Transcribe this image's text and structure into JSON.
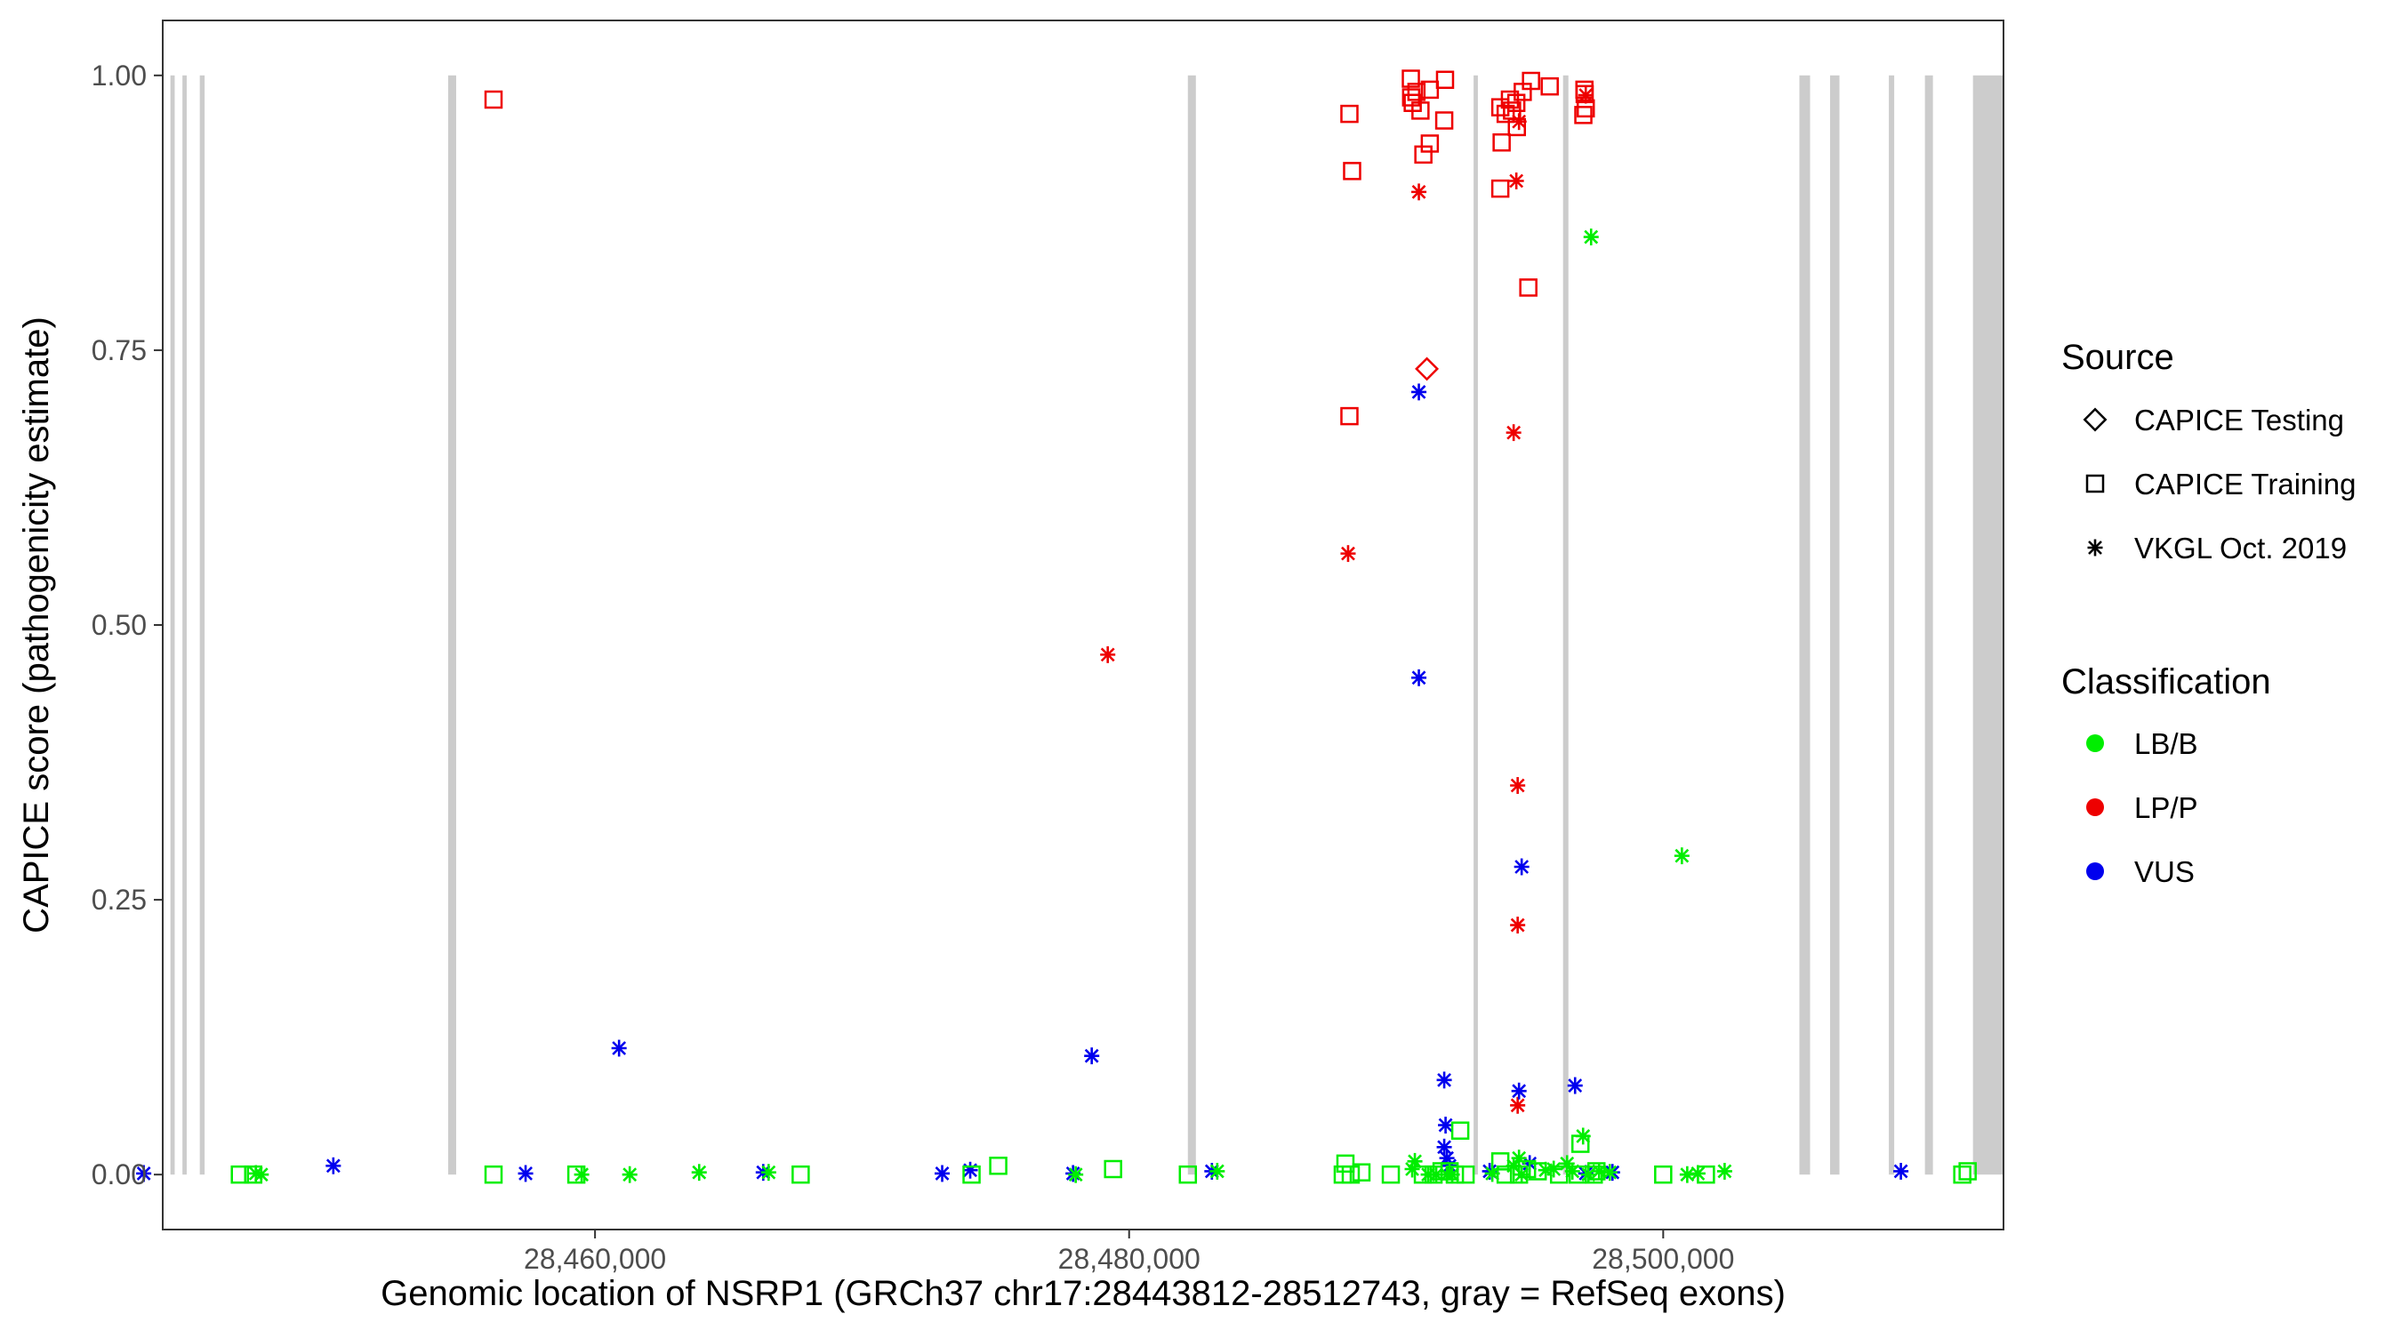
{
  "chart_data": {
    "type": "scatter",
    "xlabel": "Genomic location of NSRP1 (GRCh37 chr17:28443812-28512743, gray = RefSeq exons)",
    "ylabel": "CAPICE score (pathogenicity estimate)",
    "xlim": [
      28443812,
      28512743
    ],
    "ylim": [
      -0.05,
      1.05
    ],
    "x_ticks": [
      28460000,
      28480000,
      28500000
    ],
    "x_tick_labels": [
      "28,460,000",
      "28,480,000",
      "28,500,000"
    ],
    "y_ticks": [
      0,
      0.25,
      0.5,
      0.75,
      1.0
    ],
    "y_tick_labels": [
      "0.00",
      "0.25",
      "0.50",
      "0.75",
      "1.00"
    ],
    "grid": false,
    "legend": {
      "position": "right",
      "source_title": "Source",
      "source_entries": [
        {
          "label": "CAPICE Testing",
          "shape": "diamond"
        },
        {
          "label": "CAPICE Training",
          "shape": "square"
        },
        {
          "label": "VKGL Oct. 2019",
          "shape": "asterisk"
        }
      ],
      "class_title": "Classification",
      "class_entries": [
        {
          "label": "LB/B",
          "color": "#00ee00"
        },
        {
          "label": "LP/P",
          "color": "#ee0000"
        },
        {
          "label": "VUS",
          "color": "#0000ee"
        }
      ]
    },
    "exon_color": "#cccccc",
    "exons": [
      [
        28444100,
        28444260
      ],
      [
        28444550,
        28444710
      ],
      [
        28445200,
        28445380
      ],
      [
        28454500,
        28454800
      ],
      [
        28482200,
        28482500
      ],
      [
        28492900,
        28493060
      ],
      [
        28496250,
        28496450
      ],
      [
        28505100,
        28505500
      ],
      [
        28506250,
        28506600
      ],
      [
        28508450,
        28508650
      ],
      [
        28509800,
        28510100
      ],
      [
        28511600,
        28512743
      ]
    ],
    "series": [
      {
        "class": "LP/P",
        "source": "CAPICE Training",
        "shape": "square",
        "color": "#ee0000",
        "points": [
          [
            28456200,
            0.978
          ],
          [
            28488250,
            0.965
          ],
          [
            28488350,
            0.913
          ],
          [
            28488250,
            0.69
          ],
          [
            28490550,
            0.997
          ],
          [
            28490560,
            0.98
          ],
          [
            28490620,
            0.975
          ],
          [
            28490760,
            0.985
          ],
          [
            28490910,
            0.968
          ],
          [
            28491260,
            0.987
          ],
          [
            28491020,
            0.928
          ],
          [
            28491260,
            0.938
          ],
          [
            28491830,
            0.996
          ],
          [
            28491800,
            0.959
          ],
          [
            28493900,
            0.971
          ],
          [
            28494100,
            0.965
          ],
          [
            28494260,
            0.978
          ],
          [
            28494340,
            0.968
          ],
          [
            28494500,
            0.975
          ],
          [
            28494740,
            0.985
          ],
          [
            28494520,
            0.953
          ],
          [
            28493950,
            0.939
          ],
          [
            28493900,
            0.897
          ],
          [
            28495050,
            0.995
          ],
          [
            28495750,
            0.99
          ],
          [
            28497050,
            0.987
          ],
          [
            28497060,
            0.983
          ],
          [
            28497010,
            0.964
          ],
          [
            28497100,
            0.97
          ],
          [
            28494950,
            0.807
          ]
        ]
      },
      {
        "class": "LP/P",
        "source": "CAPICE Testing",
        "shape": "diamond",
        "color": "#ee0000",
        "points": [
          [
            28491150,
            0.733
          ]
        ]
      },
      {
        "class": "LP/P",
        "source": "VKGL Oct. 2019",
        "shape": "asterisk",
        "color": "#ee0000",
        "points": [
          [
            28479200,
            0.473
          ],
          [
            28488200,
            0.565
          ],
          [
            28490850,
            0.894
          ],
          [
            28494500,
            0.904
          ],
          [
            28494400,
            0.675
          ],
          [
            28494550,
            0.354
          ],
          [
            28494550,
            0.227
          ],
          [
            28494550,
            0.063
          ],
          [
            28494600,
            0.958
          ],
          [
            28497100,
            0.982
          ]
        ]
      },
      {
        "class": "VUS",
        "source": "VKGL Oct. 2019",
        "shape": "asterisk",
        "color": "#0000ee",
        "points": [
          [
            28443100,
            0.001
          ],
          [
            28450200,
            0.008
          ],
          [
            28457400,
            0.001
          ],
          [
            28460900,
            0.115
          ],
          [
            28466300,
            0.002
          ],
          [
            28473000,
            0.001
          ],
          [
            28474050,
            0.004
          ],
          [
            28477900,
            0.001
          ],
          [
            28478600,
            0.108
          ],
          [
            28483100,
            0.003
          ],
          [
            28490850,
            0.712
          ],
          [
            28490850,
            0.452
          ],
          [
            28491800,
            0.086
          ],
          [
            28491850,
            0.045
          ],
          [
            28491800,
            0.025
          ],
          [
            28491900,
            0.015
          ],
          [
            28492000,
            0.008
          ],
          [
            28493500,
            0.003
          ],
          [
            28494600,
            0.076
          ],
          [
            28494700,
            0.28
          ],
          [
            28495000,
            0.01
          ],
          [
            28496700,
            0.081
          ],
          [
            28497100,
            0.001
          ],
          [
            28498100,
            0.002
          ],
          [
            28508900,
            0.003
          ]
        ]
      },
      {
        "class": "LB/B",
        "source": "CAPICE Training",
        "shape": "square",
        "color": "#00ee00",
        "points": [
          [
            28446700,
            0.0
          ],
          [
            28447200,
            0.0
          ],
          [
            28456200,
            0.0
          ],
          [
            28459300,
            0.0
          ],
          [
            28467700,
            0.0
          ],
          [
            28474100,
            0.0
          ],
          [
            28475100,
            0.008
          ],
          [
            28479400,
            0.005
          ],
          [
            28482200,
            0.0
          ],
          [
            28488000,
            0.0
          ],
          [
            28488100,
            0.01
          ],
          [
            28488300,
            0.0
          ],
          [
            28488700,
            0.002
          ],
          [
            28489800,
            0.0
          ],
          [
            28491000,
            0.0
          ],
          [
            28491400,
            0.0
          ],
          [
            28491700,
            0.003
          ],
          [
            28492000,
            0.003
          ],
          [
            28492200,
            0.0
          ],
          [
            28492400,
            0.04
          ],
          [
            28492600,
            0.0
          ],
          [
            28493900,
            0.012
          ],
          [
            28494100,
            0.0
          ],
          [
            28494600,
            0.0
          ],
          [
            28494900,
            0.005
          ],
          [
            28495300,
            0.003
          ],
          [
            28496100,
            0.0
          ],
          [
            28496800,
            0.0
          ],
          [
            28496900,
            0.028
          ],
          [
            28497400,
            0.0
          ],
          [
            28497500,
            0.003
          ],
          [
            28500000,
            0.0
          ],
          [
            28501600,
            0.0
          ],
          [
            28511200,
            0.0
          ],
          [
            28511400,
            0.003
          ]
        ]
      },
      {
        "class": "LB/B",
        "source": "VKGL Oct. 2019",
        "shape": "asterisk",
        "color": "#00ee00",
        "points": [
          [
            28447300,
            0.001
          ],
          [
            28447500,
            0.0
          ],
          [
            28459500,
            0.0
          ],
          [
            28461300,
            0.0
          ],
          [
            28463900,
            0.002
          ],
          [
            28466500,
            0.002
          ],
          [
            28478000,
            0.0
          ],
          [
            28483300,
            0.003
          ],
          [
            28490600,
            0.005
          ],
          [
            28490700,
            0.012
          ],
          [
            28491200,
            0.0
          ],
          [
            28491500,
            0.0
          ],
          [
            28491900,
            0.0
          ],
          [
            28492100,
            0.0
          ],
          [
            28493600,
            0.001
          ],
          [
            28494400,
            0.008
          ],
          [
            28494600,
            0.015
          ],
          [
            28494700,
            0.0
          ],
          [
            28495600,
            0.004
          ],
          [
            28495900,
            0.005
          ],
          [
            28496400,
            0.01
          ],
          [
            28496600,
            0.003
          ],
          [
            28497000,
            0.035
          ],
          [
            28497200,
            0.0
          ],
          [
            28497600,
            0.003
          ],
          [
            28498000,
            0.002
          ],
          [
            28497300,
            0.853
          ],
          [
            28500700,
            0.29
          ],
          [
            28500900,
            0.0
          ],
          [
            28501300,
            0.001
          ],
          [
            28502300,
            0.003
          ]
        ]
      }
    ]
  }
}
